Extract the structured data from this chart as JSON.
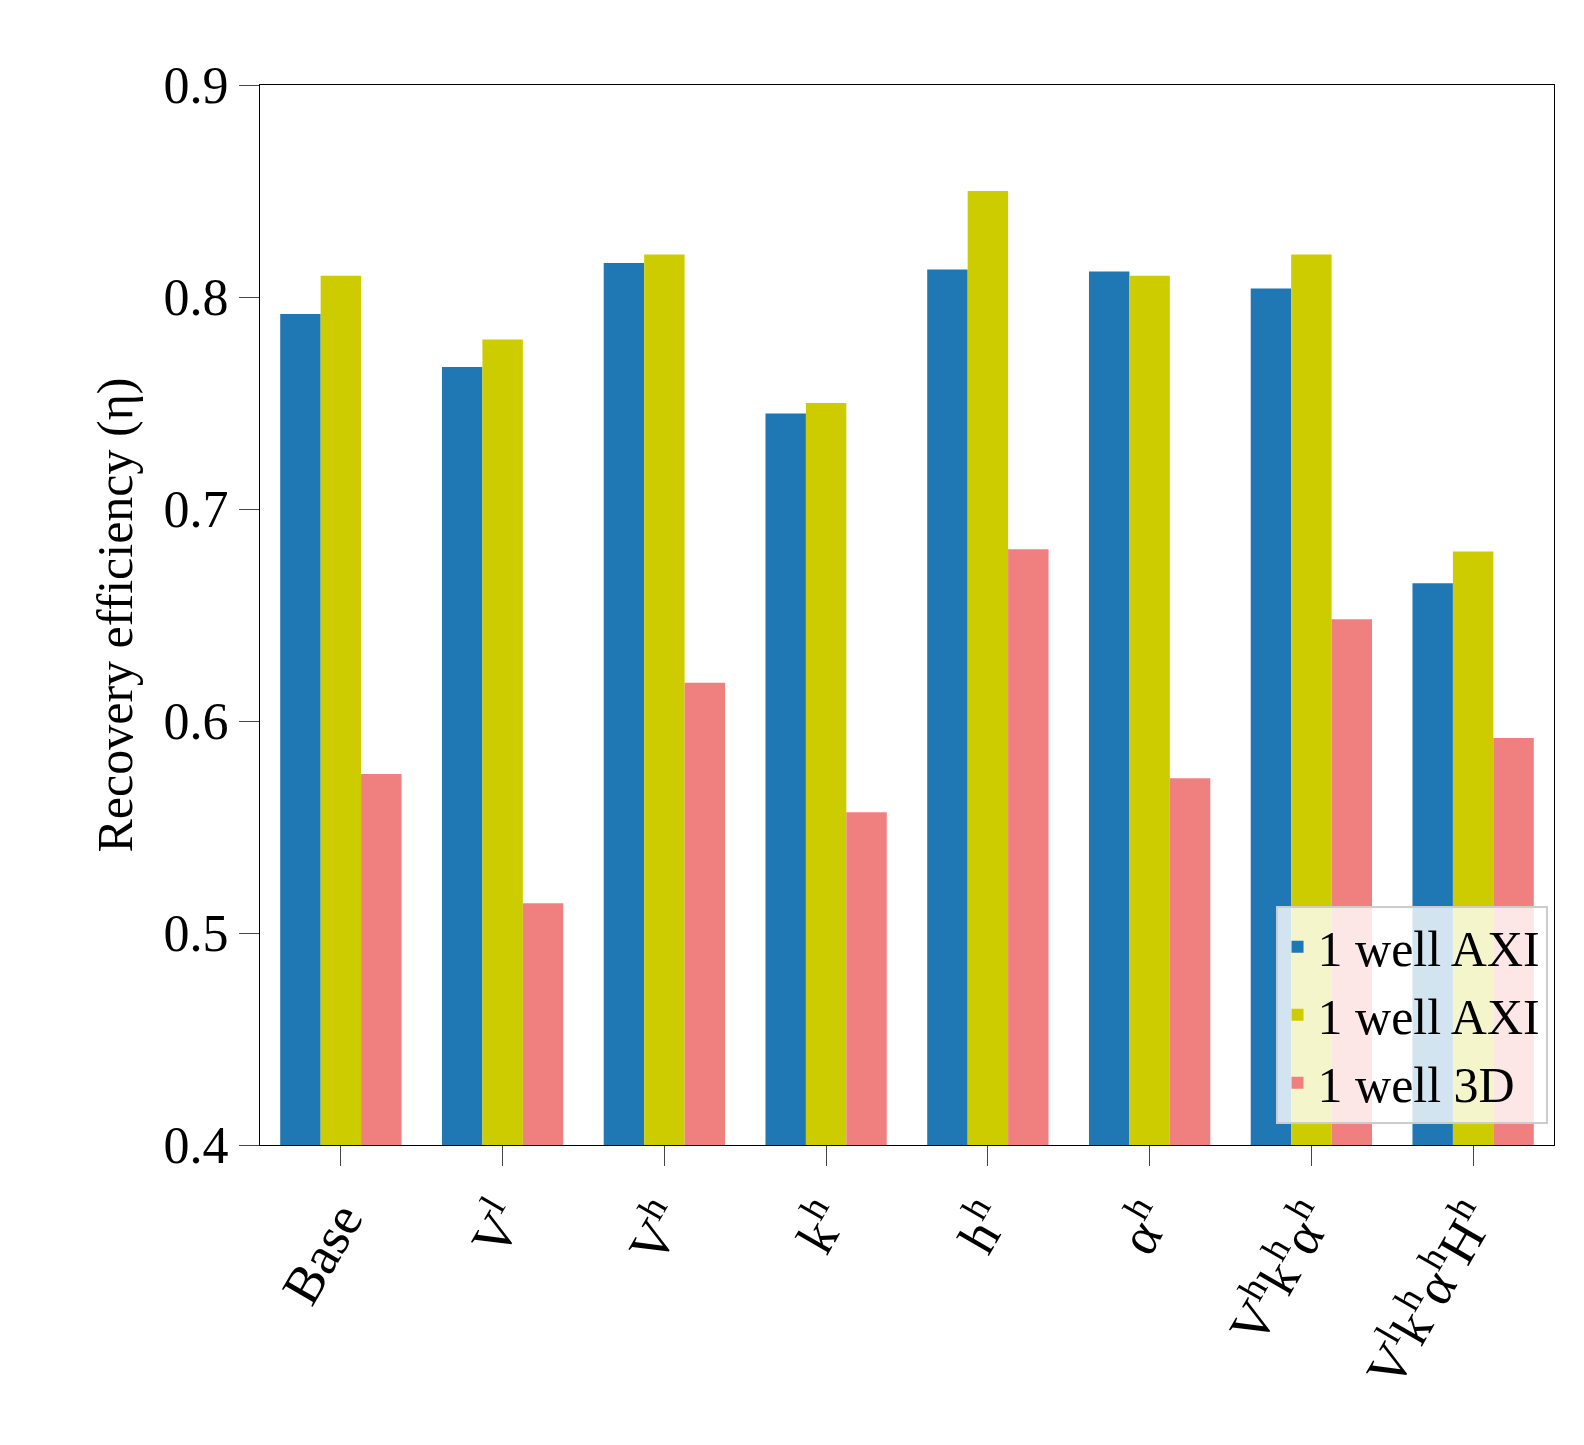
{
  "chart_data": {
    "type": "bar",
    "ylabel": "Recovery efficiency (η)",
    "categories": [
      "Base",
      "V$^{l}$",
      "V$^{h}$",
      "k$^{h}$",
      "h$^{h}$",
      "α$^{h}$",
      "V$^{h}$k$^{h}$α$^{h}$",
      "V$^{l}$k$^{h}$α$^{h}$H$^{h}$"
    ],
    "series": [
      {
        "name": "1 well AXI",
        "color": "#1f77b4",
        "values": [
          0.792,
          0.767,
          0.816,
          0.745,
          0.813,
          0.812,
          0.804,
          0.665
        ]
      },
      {
        "name": "1 well AXI",
        "color": "#cccc00",
        "values": [
          0.81,
          0.78,
          0.82,
          0.75,
          0.85,
          0.81,
          0.82,
          0.68
        ]
      },
      {
        "name": "1 well 3D",
        "color": "#f08080",
        "values": [
          0.575,
          0.514,
          0.618,
          0.557,
          0.681,
          0.573,
          0.648,
          0.592
        ]
      }
    ],
    "ylim": [
      0.4,
      0.9
    ],
    "yticks": [
      0.4,
      0.5,
      0.6,
      0.7,
      0.8,
      0.9
    ],
    "legend": "bottom right"
  }
}
